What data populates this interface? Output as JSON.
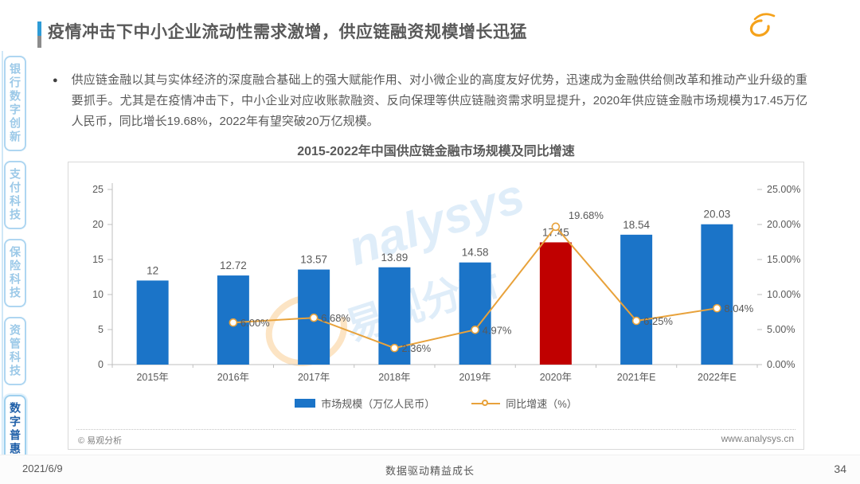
{
  "page": {
    "title": "疫情冲击下中小企业流动性需求激增，供应链融资规模增长迅猛",
    "date": "2021/6/9",
    "footer_slogan": "数据驱动精益成长",
    "page_number": "34"
  },
  "logo": {
    "latin": "nalysys",
    "cn": "易观分析"
  },
  "sidebar": {
    "items": [
      {
        "label": "银行数字创新",
        "active": false
      },
      {
        "label": "支付科技",
        "active": false
      },
      {
        "label": "保险科技",
        "active": false
      },
      {
        "label": "资管科技",
        "active": false
      },
      {
        "label": "数字普惠",
        "active": true
      }
    ]
  },
  "body": {
    "bullet_text": "供应链金融以其与实体经济的深度融合基础上的强大赋能作用、对小微企业的高度友好优势，迅速成为金融供给侧改革和推动产业升级的重要抓手。尤其是在疫情冲击下，中小企业对应收账款融资、反向保理等供应链融资需求明显提升，2020年供应链金融市场规模为17.45万亿人民币，同比增长19.68%，2022年有望突破20万亿规模。"
  },
  "chart_data": {
    "type": "bar",
    "title": "2015-2022年中国供应链金融市场规模及同比增速",
    "categories": [
      "2015年",
      "2016年",
      "2017年",
      "2018年",
      "2019年",
      "2020年",
      "2021年E",
      "2022年E"
    ],
    "series": [
      {
        "name": "市场规模（万亿人民币）",
        "type": "bar",
        "values": [
          12,
          12.72,
          13.57,
          13.89,
          14.58,
          17.45,
          18.54,
          20.03
        ],
        "labels": [
          "12",
          "12.72",
          "13.57",
          "13.89",
          "14.58",
          "17.45",
          "18.54",
          "20.03"
        ]
      },
      {
        "name": "同比增速（%）",
        "type": "line",
        "values": [
          null,
          6.0,
          6.68,
          2.36,
          4.97,
          19.68,
          6.25,
          8.04
        ],
        "labels": [
          null,
          "6.00%",
          "6.68%",
          "2.36%",
          "4.97%",
          "19.68%",
          "6.25%",
          "8.04%"
        ]
      }
    ],
    "left_axis": {
      "min": 0,
      "max": 25,
      "ticks": [
        0,
        5,
        10,
        15,
        20,
        25
      ]
    },
    "right_axis": {
      "min": 0,
      "max": 25,
      "tick_labels": [
        "0.00%",
        "5.00%",
        "10.00%",
        "15.00%",
        "20.00%",
        "25.00%"
      ]
    },
    "grid": false,
    "legend_position": "bottom",
    "bar_color": "#1b74c8",
    "highlight_color": "#c00000",
    "highlight_index": 5,
    "line_color": "#e8a23b",
    "axis_color": "#bfbfbf",
    "label_color": "#595959",
    "watermark": {
      "latin": "nalysys",
      "cn": "易观分析"
    },
    "copyright": "© 易观分析",
    "website": "www.analysys.cn"
  },
  "theme": {
    "accent_blue": "#2e9bd6",
    "accent_gray": "#8c8c8c",
    "sidebar_inactive": "#9cc9e8",
    "sidebar_active": "#1f5fa8",
    "logo_blue": "#1b9cd8",
    "logo_orange": "#f5a21b"
  }
}
